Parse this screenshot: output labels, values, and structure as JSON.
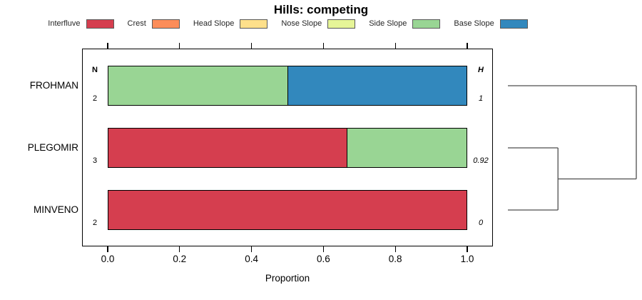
{
  "title": "Hills: competing",
  "legend": [
    {
      "label": "Interfluve",
      "color": "#d53e4f"
    },
    {
      "label": "Crest",
      "color": "#fc8d59"
    },
    {
      "label": "Head Slope",
      "color": "#fee08b"
    },
    {
      "label": "Nose Slope",
      "color": "#e6f598"
    },
    {
      "label": "Side Slope",
      "color": "#99d594"
    },
    {
      "label": "Base Slope",
      "color": "#3288bd"
    }
  ],
  "chart_data": {
    "type": "bar",
    "orientation": "horizontal",
    "stacked": true,
    "title": "Hills: competing",
    "xlabel": "Proportion",
    "xlim": [
      0,
      1
    ],
    "xticks": [
      "0.0",
      "0.2",
      "0.4",
      "0.6",
      "0.8",
      "1.0"
    ],
    "grid": false,
    "legend_position": "top",
    "categories": [
      "FROHMAN",
      "PLEGOMIR",
      "MINVENO"
    ],
    "count_column": {
      "header": "N",
      "values": [
        2,
        3,
        2
      ]
    },
    "entropy_column": {
      "header": "H",
      "values": [
        "1",
        "0.92",
        "0"
      ]
    },
    "series": [
      {
        "name": "Interfluve",
        "color": "#d53e4f",
        "values": [
          0,
          0.667,
          1.0
        ]
      },
      {
        "name": "Crest",
        "color": "#fc8d59",
        "values": [
          0,
          0,
          0
        ]
      },
      {
        "name": "Head Slope",
        "color": "#fee08b",
        "values": [
          0,
          0,
          0
        ]
      },
      {
        "name": "Nose Slope",
        "color": "#e6f598",
        "values": [
          0,
          0,
          0
        ]
      },
      {
        "name": "Side Slope",
        "color": "#99d594",
        "values": [
          0.5,
          0.333,
          0
        ]
      },
      {
        "name": "Base Slope",
        "color": "#3288bd",
        "values": [
          0.5,
          0,
          0
        ]
      }
    ],
    "dendrogram": {
      "leaf_order": [
        "FROHMAN",
        "PLEGOMIR",
        "MINVENO"
      ],
      "merges": [
        {
          "members": [
            1,
            2
          ],
          "height_frac": 0.39
        },
        {
          "members": [
            0,
            "m0"
          ],
          "height_frac": 1.0
        }
      ]
    }
  }
}
